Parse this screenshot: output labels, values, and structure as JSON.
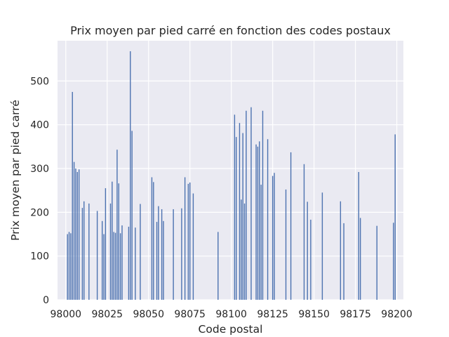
{
  "chart_data": {
    "type": "bar",
    "title": "Prix moyen par pied carré en fonction des codes postaux",
    "xlabel": "Code postal",
    "ylabel": "Prix moyen par pied carré",
    "xlim": [
      97995,
      98204
    ],
    "ylim": [
      0,
      592
    ],
    "xticks": [
      98000,
      98025,
      98050,
      98075,
      98100,
      98125,
      98150,
      98175,
      98200
    ],
    "yticks": [
      0,
      100,
      200,
      300,
      400,
      500
    ],
    "grid": true,
    "bar_color": "#4c72b0",
    "background_color": "#eaeaf2",
    "series": [
      {
        "x": [
          98001,
          98002,
          98003,
          98004,
          98005,
          98006,
          98007,
          98008,
          98010,
          98011,
          98014,
          98019,
          98022,
          98023,
          98024,
          98027,
          98028,
          98029,
          98030,
          98031,
          98032,
          98033,
          98034,
          98038,
          98039,
          98040,
          98042,
          98045,
          98052,
          98053,
          98055,
          98056,
          98058,
          98059,
          98065,
          98070,
          98072,
          98074,
          98075,
          98077,
          98092,
          98102,
          98103,
          98105,
          98106,
          98107,
          98108,
          98109,
          98112,
          98115,
          98116,
          98117,
          98118,
          98119,
          98122,
          98125,
          98126,
          98133,
          98136,
          98144,
          98146,
          98148,
          98155,
          98166,
          98168,
          98177,
          98178,
          98188,
          98198,
          98199
        ],
        "values": [
          150,
          155,
          152,
          475,
          315,
          300,
          292,
          298,
          210,
          225,
          220,
          203,
          180,
          150,
          255,
          220,
          270,
          155,
          153,
          343,
          266,
          152,
          170,
          167,
          568,
          386,
          165,
          219,
          280,
          269,
          178,
          214,
          207,
          180,
          207,
          209,
          280,
          265,
          268,
          243,
          155,
          423,
          372,
          404,
          229,
          381,
          220,
          432,
          440,
          355,
          350,
          362,
          263,
          432,
          367,
          283,
          290,
          252,
          337,
          310,
          224,
          183,
          245,
          225,
          175,
          292,
          187,
          169,
          176,
          378
        ]
      }
    ]
  }
}
